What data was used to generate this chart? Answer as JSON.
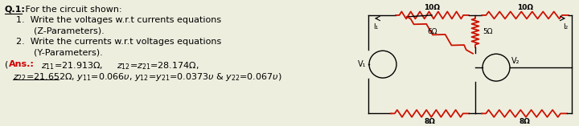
{
  "bg_color": "#eeeedf",
  "text_color": "#000000",
  "title_q": "Q.1:",
  "title_rest": " For the circuit shown:",
  "item1a": "1.  Write the voltages w.r.t currents equations",
  "item1b": "    (Z-Parameters).",
  "item2a": "2.  Write the currents w.r.t voltages equations",
  "item2b": "    (Y-Parameters).",
  "ans_label": "Ans.:",
  "ans_line1": "     z",
  "ans_line2_prefix": "     z",
  "circuit": {
    "top_left_label": "10Ω",
    "top_right_label": "10Ω",
    "diag_label": "6Ω",
    "vert_label": "5Ω",
    "bot_left_label": "8Ω",
    "bot_right_label": "8Ω",
    "v1_label": "V₁",
    "v2_label": "V₂",
    "i1_label": "I₁",
    "i2_label": "I₂"
  },
  "resistor_color": "#cc1100",
  "wire_color": "#000000",
  "fs_main": 8.0,
  "fs_circuit": 6.5
}
